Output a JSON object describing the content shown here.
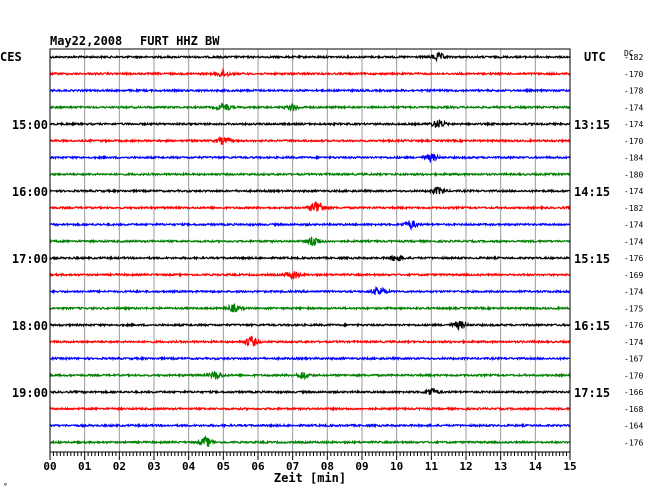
{
  "header": {
    "date": "May22,2008",
    "station": "FURT HHZ BW",
    "left_tz": "CES",
    "right_tz": "UTC",
    "dc_label": "DC"
  },
  "footer": {
    "xlabel": "Zeit [min]",
    "corner_mark": "°"
  },
  "chart_data": {
    "type": "line",
    "title": "May22,2008   FURT HHZ BW",
    "xlabel": "Zeit [min]",
    "x_ticks": [
      "00",
      "01",
      "02",
      "03",
      "04",
      "05",
      "06",
      "07",
      "08",
      "09",
      "10",
      "11",
      "12",
      "13",
      "14",
      "15"
    ],
    "xlim": [
      0,
      15
    ],
    "grid": true,
    "trace_colors": [
      "#000000",
      "#ff0000",
      "#0000ff",
      "#008000"
    ],
    "left_hour_labels": [
      {
        "trace": 4,
        "text": "15:00"
      },
      {
        "trace": 8,
        "text": "16:00"
      },
      {
        "trace": 12,
        "text": "17:00"
      },
      {
        "trace": 16,
        "text": "18:00"
      },
      {
        "trace": 20,
        "text": "19:00"
      }
    ],
    "right_utc_labels": [
      {
        "trace": 4,
        "text": "13:15"
      },
      {
        "trace": 8,
        "text": "14:15"
      },
      {
        "trace": 12,
        "text": "15:15"
      },
      {
        "trace": 16,
        "text": "16:15"
      },
      {
        "trace": 20,
        "text": "17:15"
      }
    ],
    "dc_offsets": [
      "-182",
      "-170",
      "-178",
      "-174",
      "-174",
      "-170",
      "-184",
      "-180",
      "-174",
      "-182",
      "-174",
      "-174",
      "-176",
      "-169",
      "-174",
      "-175",
      "-176",
      "-174",
      "-167",
      "-170",
      "-166",
      "-168",
      "-164",
      "-176"
    ],
    "events": [
      {
        "trace": 0,
        "minute": 11.2,
        "amp": 1.4
      },
      {
        "trace": 1,
        "minute": 5.0,
        "amp": 1.3
      },
      {
        "trace": 3,
        "minute": 5.0,
        "amp": 1.4
      },
      {
        "trace": 3,
        "minute": 7.0,
        "amp": 1.2
      },
      {
        "trace": 4,
        "minute": 11.2,
        "amp": 1.5
      },
      {
        "trace": 5,
        "minute": 5.0,
        "amp": 1.3
      },
      {
        "trace": 6,
        "minute": 11.0,
        "amp": 1.3
      },
      {
        "trace": 8,
        "minute": 11.2,
        "amp": 1.3
      },
      {
        "trace": 9,
        "minute": 7.7,
        "amp": 2.8
      },
      {
        "trace": 10,
        "minute": 10.4,
        "amp": 1.5
      },
      {
        "trace": 11,
        "minute": 7.6,
        "amp": 1.9
      },
      {
        "trace": 12,
        "minute": 10.0,
        "amp": 1.3
      },
      {
        "trace": 13,
        "minute": 7.0,
        "amp": 1.5
      },
      {
        "trace": 14,
        "minute": 9.5,
        "amp": 1.5
      },
      {
        "trace": 15,
        "minute": 5.3,
        "amp": 1.3
      },
      {
        "trace": 16,
        "minute": 11.8,
        "amp": 1.4
      },
      {
        "trace": 17,
        "minute": 5.8,
        "amp": 1.9
      },
      {
        "trace": 19,
        "minute": 4.8,
        "amp": 1.5
      },
      {
        "trace": 19,
        "minute": 7.3,
        "amp": 1.3
      },
      {
        "trace": 20,
        "minute": 11.0,
        "amp": 1.4
      },
      {
        "trace": 23,
        "minute": 4.5,
        "amp": 1.7
      }
    ]
  }
}
